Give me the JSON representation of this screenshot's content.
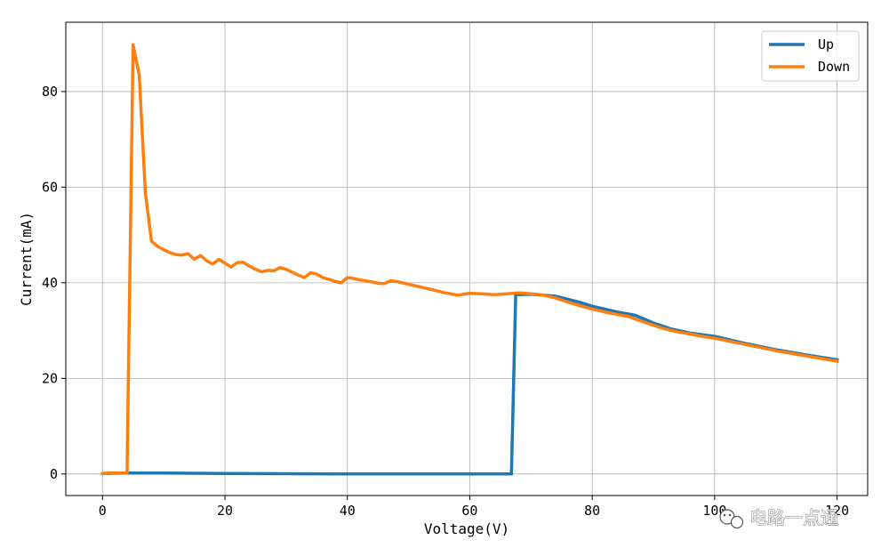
{
  "chart_data": {
    "type": "line",
    "title": "",
    "xlabel": "Voltage(V)",
    "ylabel": "Current(mA)",
    "xlim": [
      -6,
      125
    ],
    "ylim": [
      -4.5,
      94.5
    ],
    "xticks": [
      0,
      20,
      40,
      60,
      80,
      100,
      120
    ],
    "yticks": [
      0,
      20,
      40,
      60,
      80
    ],
    "grid": true,
    "legend_position": "top-right",
    "series": [
      {
        "name": "Up",
        "color": "#1f77b4",
        "x": [
          0,
          4,
          10,
          20,
          30,
          40,
          50,
          60,
          66.8,
          67.5,
          70,
          74,
          78,
          80,
          84,
          87,
          90,
          93,
          96,
          100,
          105,
          110,
          115,
          120
        ],
        "y": [
          0.1,
          0.2,
          0.2,
          0.1,
          0.05,
          0,
          0,
          0,
          0,
          37.5,
          37.6,
          37.2,
          35.9,
          35.1,
          33.9,
          33.2,
          31.6,
          30.3,
          29.5,
          28.8,
          27.3,
          26.0,
          24.9,
          23.9
        ]
      },
      {
        "name": "Down",
        "color": "#ff7f0e",
        "x": [
          0,
          1,
          2,
          3,
          4,
          5,
          6,
          7,
          8,
          9,
          10,
          11,
          12,
          13,
          14,
          15,
          16,
          17,
          18,
          19,
          20,
          21,
          22,
          23,
          24,
          25,
          26,
          27,
          28,
          29,
          30,
          31,
          32,
          33,
          34,
          35,
          36,
          37,
          38,
          39,
          40,
          41,
          42,
          43,
          44,
          45,
          46,
          47,
          48,
          49,
          50,
          52,
          54,
          56,
          58,
          60,
          62,
          64,
          66,
          68,
          70,
          72,
          74,
          76,
          78,
          80,
          82,
          84,
          86,
          88,
          90,
          92,
          94,
          96,
          98,
          100,
          105,
          110,
          115,
          120
        ],
        "y": [
          0.1,
          0.2,
          0.2,
          0.2,
          0.2,
          89.8,
          83.5,
          58.8,
          48.7,
          47.6,
          46.9,
          46.3,
          45.9,
          45.8,
          46.1,
          44.9,
          45.7,
          44.6,
          43.9,
          44.9,
          44.1,
          43.3,
          44.2,
          44.3,
          43.5,
          42.8,
          42.3,
          42.6,
          42.5,
          43.2,
          42.8,
          42.2,
          41.6,
          41.1,
          42.1,
          41.8,
          41.1,
          40.7,
          40.3,
          40.0,
          41.1,
          40.9,
          40.6,
          40.4,
          40.2,
          39.9,
          39.8,
          40.4,
          40.3,
          40.0,
          39.7,
          39.1,
          38.5,
          37.9,
          37.4,
          37.8,
          37.7,
          37.5,
          37.7,
          37.9,
          37.7,
          37.4,
          36.8,
          36.0,
          35.2,
          34.5,
          33.9,
          33.4,
          32.9,
          32.0,
          31.1,
          30.3,
          29.7,
          29.3,
          28.8,
          28.4,
          27.1,
          25.8,
          24.7,
          23.6
        ]
      }
    ]
  },
  "watermark": {
    "text": "电路一点通",
    "icon": "wechat-icon"
  }
}
